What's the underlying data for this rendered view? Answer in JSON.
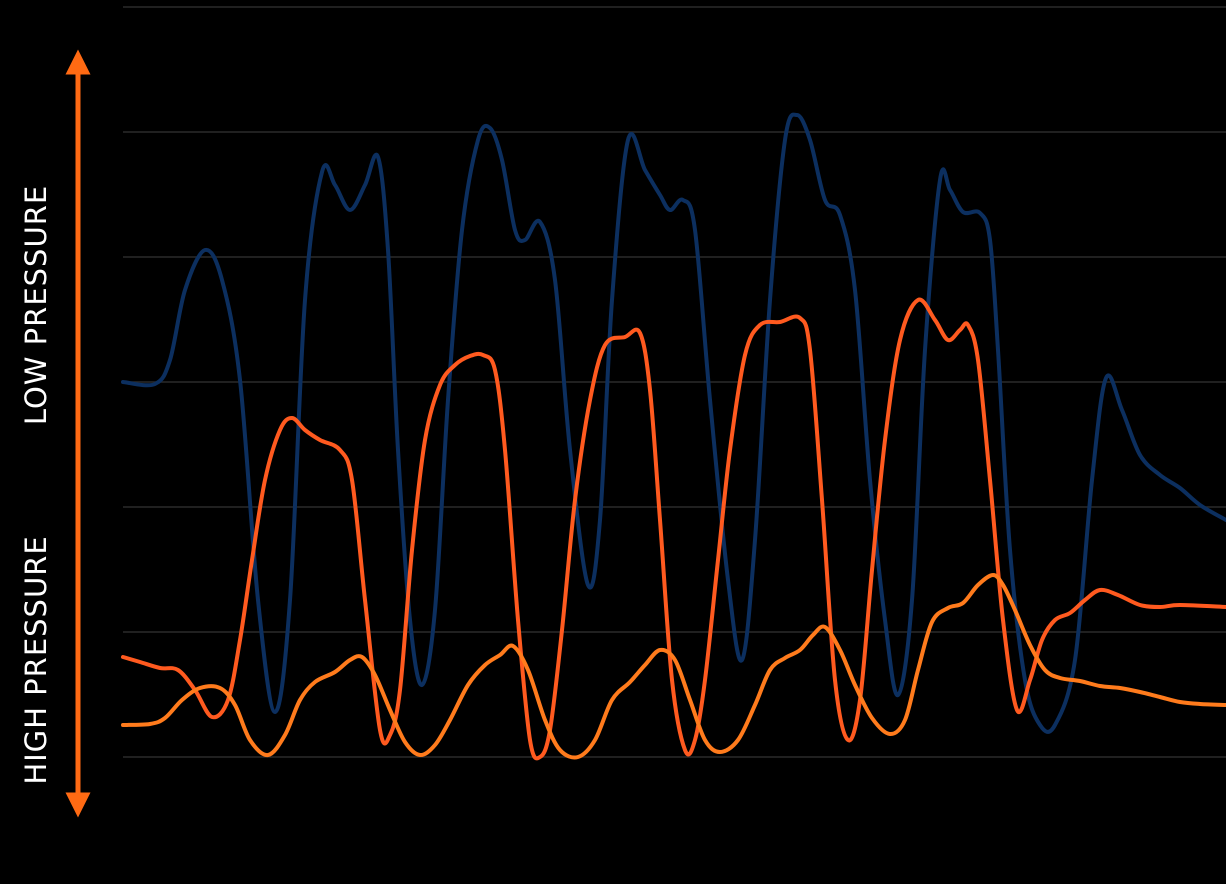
{
  "chart_data": {
    "type": "line",
    "annotations": [
      "LOW PRESSURE",
      "HIGH PRESSURE"
    ],
    "xlim": [
      0,
      1103
    ],
    "ylim": [
      0,
      750
    ],
    "yticks": [
      0,
      125,
      250,
      375,
      500,
      625,
      750
    ],
    "grid": true,
    "series": [
      {
        "color": "#0c2f5f",
        "x": [
          0,
          32,
          47,
          62,
          82,
          99,
          117,
          135,
          152,
          167,
          182,
          199,
          212,
          227,
          242,
          255,
          265,
          275,
          287,
          299,
          312,
          325,
          339,
          355,
          367,
          379,
          392,
          402,
          417,
          432,
          447,
          465,
          477,
          489,
          505,
          522,
          537,
          547,
          560,
          572,
          587,
          605,
          619,
          632,
          647,
          662,
          674,
          687,
          702,
          717,
          732,
          747,
          762,
          775,
          789,
          802,
          817,
          827,
          840,
          857,
          867,
          875,
          887,
          902,
          917,
          932,
          952,
          969,
          983,
          999,
          1017,
          1037,
          1057,
          1077,
          1103
        ],
        "values": [
          375,
          373,
          397,
          467,
          507,
          477,
          377,
          157,
          45,
          157,
          457,
          585,
          572,
          547,
          572,
          600,
          507,
          307,
          137,
          72,
          147,
          357,
          527,
          617,
          629,
          597,
          527,
          517,
          535,
          477,
          307,
          172,
          237,
          457,
          617,
          587,
          562,
          547,
          557,
          527,
          357,
          177,
          97,
          217,
          457,
          617,
          642,
          617,
          557,
          542,
          467,
          277,
          137,
          62,
          157,
          407,
          577,
          567,
          545,
          544,
          517,
          407,
          207,
          77,
          32,
          32,
          97,
          277,
          379,
          347,
          302,
          282,
          269,
          252,
          237
        ]
      },
      {
        "color": "#ff5a1f",
        "x": [
          0,
          17,
          37,
          55,
          72,
          89,
          105,
          117,
          129,
          142,
          157,
          169,
          182,
          197,
          217,
          229,
          242,
          257,
          267,
          277,
          289,
          302,
          317,
          332,
          347,
          360,
          372,
          382,
          395,
          407,
          417,
          427,
          439,
          452,
          467,
          482,
          502,
          517,
          527,
          537,
          549,
          562,
          572,
          582,
          595,
          607,
          622,
          637,
          657,
          677,
          687,
          699,
          712,
          725,
          737,
          749,
          762,
          777,
          795,
          812,
          825,
          837,
          845,
          855,
          867,
          880,
          894,
          907,
          919,
          932,
          947,
          962,
          977,
          995,
          1017,
          1037,
          1057,
          1103
        ],
        "values": [
          100,
          95,
          89,
          87,
          67,
          40,
          57,
          117,
          197,
          277,
          327,
          339,
          327,
          317,
          307,
          277,
          157,
          27,
          22,
          67,
          207,
          317,
          372,
          392,
          401,
          402,
          387,
          307,
          137,
          17,
          0,
          27,
          127,
          257,
          357,
          412,
          420,
          424,
          367,
          237,
          77,
          7,
          17,
          77,
          197,
          307,
          402,
          432,
          435,
          439,
          407,
          257,
          77,
          17,
          57,
          187,
          317,
          417,
          457,
          437,
          417,
          427,
          432,
          397,
          277,
          137,
          47,
          77,
          117,
          137,
          144,
          157,
          167,
          162,
          152,
          150,
          152,
          150
        ]
      },
      {
        "color": "#ff7b1c",
        "x": [
          0,
          27,
          42,
          59,
          77,
          97,
          112,
          127,
          145,
          162,
          177,
          192,
          212,
          227,
          239,
          252,
          267,
          282,
          297,
          312,
          327,
          345,
          362,
          377,
          390,
          405,
          422,
          437,
          455,
          472,
          489,
          507,
          522,
          537,
          552,
          567,
          582,
          597,
          615,
          632,
          647,
          662,
          677,
          690,
          702,
          717,
          732,
          749,
          767,
          782,
          795,
          809,
          825,
          840,
          855,
          870,
          880,
          892,
          907,
          922,
          937,
          957,
          977,
          997,
          1017,
          1037,
          1057,
          1077,
          1103
        ],
        "values": [
          32,
          33,
          39,
          57,
          69,
          69,
          52,
          17,
          2,
          22,
          57,
          75,
          85,
          97,
          100,
          82,
          47,
          15,
          2,
          12,
          37,
          72,
          92,
          102,
          111,
          87,
          37,
          7,
          0,
          17,
          57,
          75,
          92,
          107,
          97,
          57,
          17,
          5,
          17,
          52,
          87,
          99,
          107,
          122,
          130,
          107,
          72,
          39,
          23,
          37,
          87,
          135,
          149,
          154,
          172,
          182,
          172,
          147,
          112,
          87,
          79,
          76,
          71,
          69,
          65,
          60,
          55,
          53,
          52
        ]
      }
    ]
  }
}
